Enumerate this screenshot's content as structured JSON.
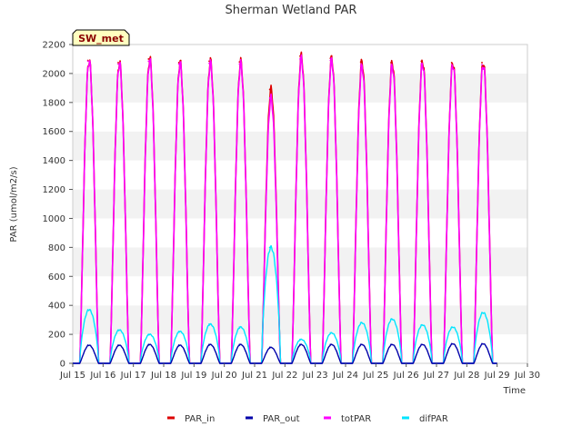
{
  "chart_data": {
    "type": "line",
    "title": "Sherman Wetland PAR",
    "xlabel": "Time",
    "ylabel": "PAR (umol/m2/s)",
    "xlim": [
      15,
      30
    ],
    "ylim": [
      0,
      2200
    ],
    "grid": "horizontal bands",
    "legend_position": "bottom-center",
    "badge": "SW_met",
    "x_ticks": [
      15,
      16,
      17,
      18,
      19,
      20,
      21,
      22,
      23,
      24,
      25,
      26,
      27,
      28,
      29,
      30
    ],
    "x_tick_labels": [
      "Jul 15",
      "Jul 16",
      "Jul 17",
      "Jul 18",
      "Jul 19",
      "Jul 20",
      "Jul 21",
      "Jul 22",
      "Jul 23",
      "Jul 24",
      "Jul 25",
      "Jul 26",
      "Jul 27",
      "Jul 28",
      "Jul 29",
      "Jul 30"
    ],
    "y_ticks": [
      0,
      200,
      400,
      600,
      800,
      1000,
      1200,
      1400,
      1600,
      1800,
      2000,
      2200
    ],
    "daylight_hours": [
      5.5,
      20.5
    ],
    "days": [
      15,
      16,
      17,
      18,
      19,
      20,
      21,
      22,
      23,
      24,
      25,
      26,
      27,
      28
    ],
    "series": [
      {
        "name": "PAR_in",
        "color": "#dd0000",
        "daily_peaks": [
          2090,
          2075,
          2100,
          2075,
          2085,
          2080,
          1890,
          2120,
          2105,
          2080,
          2075,
          2085,
          2075,
          2075
        ]
      },
      {
        "name": "PAR_out",
        "color": "#0000aa",
        "daily_peaks": [
          125,
          125,
          130,
          125,
          130,
          130,
          110,
          130,
          130,
          130,
          130,
          130,
          135,
          135
        ]
      },
      {
        "name": "totPAR",
        "color": "#ff00ff",
        "daily_peaks": [
          2085,
          2065,
          2085,
          2065,
          2070,
          2065,
          1830,
          2100,
          2090,
          2050,
          2050,
          2065,
          2060,
          2060
        ]
      },
      {
        "name": "difPAR",
        "color": "#00e5ff",
        "daily_peaks": [
          370,
          230,
          200,
          220,
          270,
          250,
          800,
          165,
          210,
          280,
          305,
          265,
          250,
          350
        ]
      }
    ]
  }
}
